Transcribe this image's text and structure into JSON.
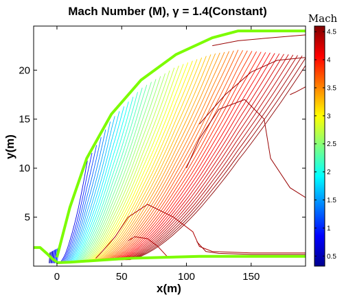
{
  "chart_data": {
    "type": "contour",
    "title": "Mach Number (M), γ = 1.4(Constant)",
    "xlabel": "x(m)",
    "ylabel": "y(m)",
    "xlim": [
      -18,
      192
    ],
    "ylim": [
      0,
      24.5
    ],
    "xticks": [
      0,
      50,
      100,
      150
    ],
    "yticks": [
      5,
      10,
      15,
      20
    ],
    "xtick_labels": [
      "0",
      "50",
      "100",
      "150"
    ],
    "ytick_labels": [
      "5",
      "10",
      "15",
      "20"
    ],
    "grid": false,
    "colorbar": {
      "label": "Mach",
      "range": [
        0.32,
        4.6
      ],
      "ticks": [
        0.5,
        1,
        1.5,
        2,
        2.5,
        3,
        3.5,
        4,
        4.5
      ],
      "tick_labels": [
        "0.5",
        "1",
        "1.5",
        "2",
        "2.5",
        "3",
        "3.5",
        "4",
        "4.5"
      ],
      "colormap": "jet",
      "colors": [
        "#00008f",
        "#0000ff",
        "#00ffff",
        "#ffff00",
        "#ff0000",
        "#800000"
      ]
    },
    "shock_color": "#7cfc00",
    "shock_curve": [
      [
        0,
        0.9
      ],
      [
        10,
        6
      ],
      [
        23,
        11
      ],
      [
        42,
        15.5
      ],
      [
        65,
        19
      ],
      [
        92,
        21.6
      ],
      [
        120,
        23.3
      ],
      [
        140,
        24
      ],
      [
        192,
        24
      ]
    ],
    "inlet_lip": [
      [
        -18,
        1.9
      ],
      [
        -13,
        1.9
      ],
      [
        -7,
        1.2
      ],
      [
        -4,
        0.8
      ],
      [
        0,
        0.4
      ]
    ],
    "wall_line": [
      [
        0,
        0.35
      ],
      [
        10,
        0.4
      ],
      [
        55,
        0.8
      ],
      [
        110,
        1.0
      ],
      [
        192,
        1.0
      ]
    ],
    "contour_levels": {
      "count": 50,
      "min": 0.35,
      "max": 4.6
    },
    "key_contours": [
      {
        "mach": 4.5,
        "points": [
          [
            192,
            23.6
          ],
          [
            165,
            23.3
          ],
          [
            140,
            23.0
          ],
          [
            120,
            22.5
          ]
        ]
      },
      {
        "mach": 4.5,
        "points": [
          [
            192,
            21.3
          ],
          [
            170,
            21.0
          ],
          [
            150,
            19.8
          ],
          [
            130,
            17.5
          ],
          [
            110,
            14.5
          ]
        ]
      },
      {
        "mach": 4.5,
        "points": [
          [
            192,
            18.3
          ],
          [
            185,
            17.8
          ],
          [
            180,
            17.5
          ]
        ]
      },
      {
        "mach": 4.5,
        "points": [
          [
            192,
            7.0
          ],
          [
            180,
            8.0
          ],
          [
            165,
            11
          ],
          [
            160,
            15
          ],
          [
            145,
            17.0
          ],
          [
            125,
            16.0
          ],
          [
            110,
            13.0
          ],
          [
            100,
            10.0
          ]
        ]
      },
      {
        "mach": 4.4,
        "points": [
          [
            192,
            1.35
          ],
          [
            150,
            1.35
          ],
          [
            120,
            1.5
          ],
          [
            110,
            2.0
          ],
          [
            105,
            3.5
          ],
          [
            90,
            5.0
          ],
          [
            70,
            6.3
          ],
          [
            55,
            5.0
          ],
          [
            45,
            3.0
          ],
          [
            35,
            1.5
          ],
          [
            30,
            0.8
          ]
        ]
      },
      {
        "mach": 4.4,
        "points": [
          [
            55,
            2.6
          ],
          [
            60,
            3.0
          ],
          [
            70,
            2.8
          ],
          [
            78,
            2.0
          ],
          [
            85,
            1.0
          ]
        ]
      },
      {
        "mach": 4.5,
        "points": [
          [
            192,
            1.2
          ],
          [
            150,
            1.2
          ],
          [
            125,
            1.3
          ],
          [
            115,
            1.5
          ],
          [
            108,
            2.5
          ]
        ]
      }
    ]
  }
}
